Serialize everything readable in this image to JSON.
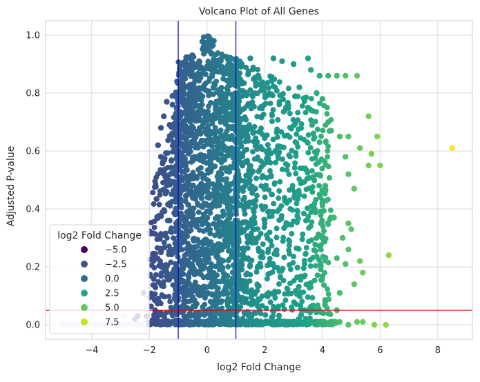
{
  "chart_data": {
    "type": "scatter",
    "title": "Volcano Plot of All Genes",
    "xlabel": "log2 Fold Change",
    "ylabel": "Adjusted P-value",
    "xlim": [
      -5.6,
      9.2
    ],
    "ylim": [
      -0.05,
      1.05
    ],
    "x_ticks": [
      -4,
      -2,
      0,
      2,
      4,
      6,
      8
    ],
    "x_tick_labels": [
      "−4",
      "−2",
      "0",
      "2",
      "4",
      "6",
      "8"
    ],
    "y_ticks": [
      0.0,
      0.2,
      0.4,
      0.6,
      0.8,
      1.0
    ],
    "y_tick_labels": [
      "0.0",
      "0.2",
      "0.4",
      "0.6",
      "0.8",
      "1.0"
    ],
    "grid": true,
    "background": "#ffffff",
    "colormap": "viridis",
    "color_by": "log2 Fold Change",
    "legend": {
      "title": "log2 Fold Change",
      "placement": "lower-left",
      "entries": [
        {
          "label": "−5.0",
          "value": -5.0,
          "color": "#440154"
        },
        {
          "label": "−2.5",
          "value": -2.5,
          "color": "#3b528b"
        },
        {
          "label": "0.0",
          "value": 0.0,
          "color": "#2c718e"
        },
        {
          "label": "2.5",
          "value": 2.5,
          "color": "#21a685"
        },
        {
          "label": "5.0",
          "value": 5.0,
          "color": "#5ec962"
        },
        {
          "label": "7.5",
          "value": 7.5,
          "color": "#c8e020"
        }
      ]
    },
    "reference_lines": [
      {
        "orientation": "vertical",
        "value": -1,
        "color": "#0000cc"
      },
      {
        "orientation": "vertical",
        "value": 1,
        "color": "#0000cc"
      },
      {
        "orientation": "horizontal",
        "value": 0.05,
        "color": "#dd0000"
      }
    ],
    "points_approximate": [
      [
        -5.0,
        0.0
      ],
      [
        -4.8,
        0.0
      ],
      [
        -4.6,
        0.0
      ],
      [
        -4.4,
        0.0
      ],
      [
        -4.2,
        0.0
      ],
      [
        -4.0,
        0.0
      ],
      [
        -3.8,
        0.0
      ],
      [
        -3.6,
        0.0
      ],
      [
        -3.4,
        0.0
      ],
      [
        -3.2,
        0.0
      ],
      [
        -3.0,
        0.0
      ],
      [
        -2.8,
        0.0
      ],
      [
        -2.9,
        0.03
      ],
      [
        -2.5,
        0.02
      ],
      [
        -2.4,
        0.03
      ],
      [
        -2.1,
        0.03
      ],
      [
        -2.2,
        0.11
      ],
      [
        -1.8,
        0.05
      ],
      [
        -1.7,
        0.09
      ],
      [
        -1.6,
        0.14
      ],
      [
        -1.8,
        0.23
      ],
      [
        -1.6,
        0.25
      ],
      [
        -1.5,
        0.31
      ],
      [
        -1.3,
        0.42
      ],
      [
        -1.5,
        0.52
      ],
      [
        -1.6,
        0.58
      ],
      [
        -1.7,
        0.62
      ],
      [
        -1.4,
        0.46
      ],
      [
        -1.3,
        0.36
      ],
      [
        -1.5,
        0.72
      ],
      [
        -1.3,
        0.69
      ],
      [
        -1.2,
        0.76
      ],
      [
        -1.2,
        0.79
      ],
      [
        -1.6,
        0.68
      ],
      [
        -1.4,
        0.77
      ],
      [
        1.2,
        0.9
      ],
      [
        1.5,
        0.92
      ],
      [
        2.3,
        0.92
      ],
      [
        2.6,
        0.91
      ],
      [
        3.0,
        0.9
      ],
      [
        3.5,
        0.92
      ],
      [
        3.6,
        0.88
      ],
      [
        3.9,
        0.86
      ],
      [
        4.2,
        0.86
      ],
      [
        4.5,
        0.86
      ],
      [
        4.8,
        0.86
      ],
      [
        5.2,
        0.86
      ],
      [
        3.2,
        0.82
      ],
      [
        3.8,
        0.8
      ],
      [
        4.0,
        0.78
      ],
      [
        3.5,
        0.75
      ],
      [
        4.2,
        0.7
      ],
      [
        5.6,
        0.72
      ],
      [
        4.3,
        0.67
      ],
      [
        4.6,
        0.65
      ],
      [
        4.9,
        0.65
      ],
      [
        5.9,
        0.65
      ],
      [
        5.3,
        0.61
      ],
      [
        5.7,
        0.59
      ],
      [
        4.8,
        0.58
      ],
      [
        5.6,
        0.55
      ],
      [
        6.0,
        0.55
      ],
      [
        4.9,
        0.52
      ],
      [
        5.1,
        0.47
      ],
      [
        4.1,
        0.48
      ],
      [
        3.9,
        0.45
      ],
      [
        4.0,
        0.42
      ],
      [
        4.4,
        0.37
      ],
      [
        4.9,
        0.35
      ],
      [
        5.0,
        0.33
      ],
      [
        4.7,
        0.3
      ],
      [
        4.9,
        0.26
      ],
      [
        5.3,
        0.22
      ],
      [
        6.3,
        0.24
      ],
      [
        4.8,
        0.21
      ],
      [
        4.5,
        0.23
      ],
      [
        5.4,
        0.18
      ],
      [
        5.1,
        0.14
      ],
      [
        4.6,
        0.11
      ],
      [
        4.1,
        0.08
      ],
      [
        4.5,
        0.05
      ],
      [
        4.6,
        0.01
      ],
      [
        4.9,
        0.0
      ],
      [
        5.2,
        0.01
      ],
      [
        5.4,
        0.01
      ],
      [
        5.8,
        0.0
      ],
      [
        6.2,
        0.0
      ],
      [
        8.5,
        0.61
      ]
    ]
  }
}
